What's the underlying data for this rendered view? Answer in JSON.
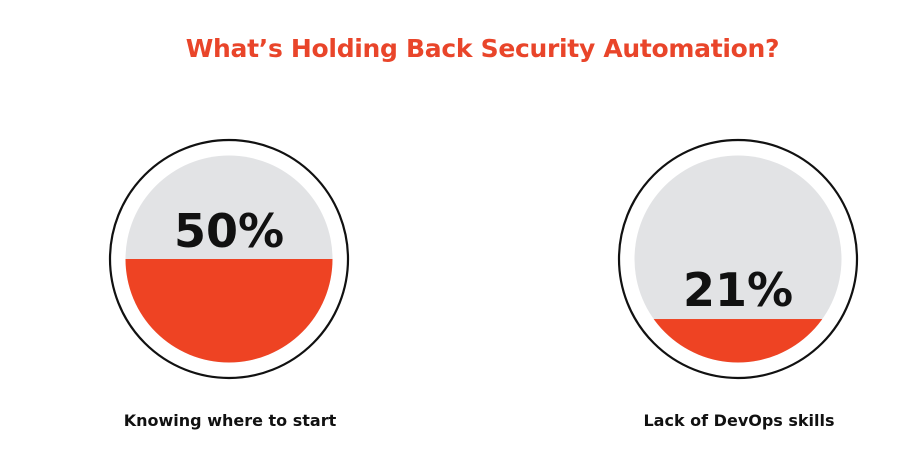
{
  "chart_data": {
    "type": "gauge",
    "title": "What’s Holding Back Security Automation?",
    "items": [
      {
        "label": "Knowing where to start",
        "value": 50,
        "value_label": "50%"
      },
      {
        "label": "Lack of DevOps skills",
        "value": 21,
        "value_label": "21%"
      }
    ],
    "colors": {
      "accent": "#EE4323",
      "empty": "#E2E3E5",
      "ring": "#111111",
      "text": "#111111"
    }
  }
}
